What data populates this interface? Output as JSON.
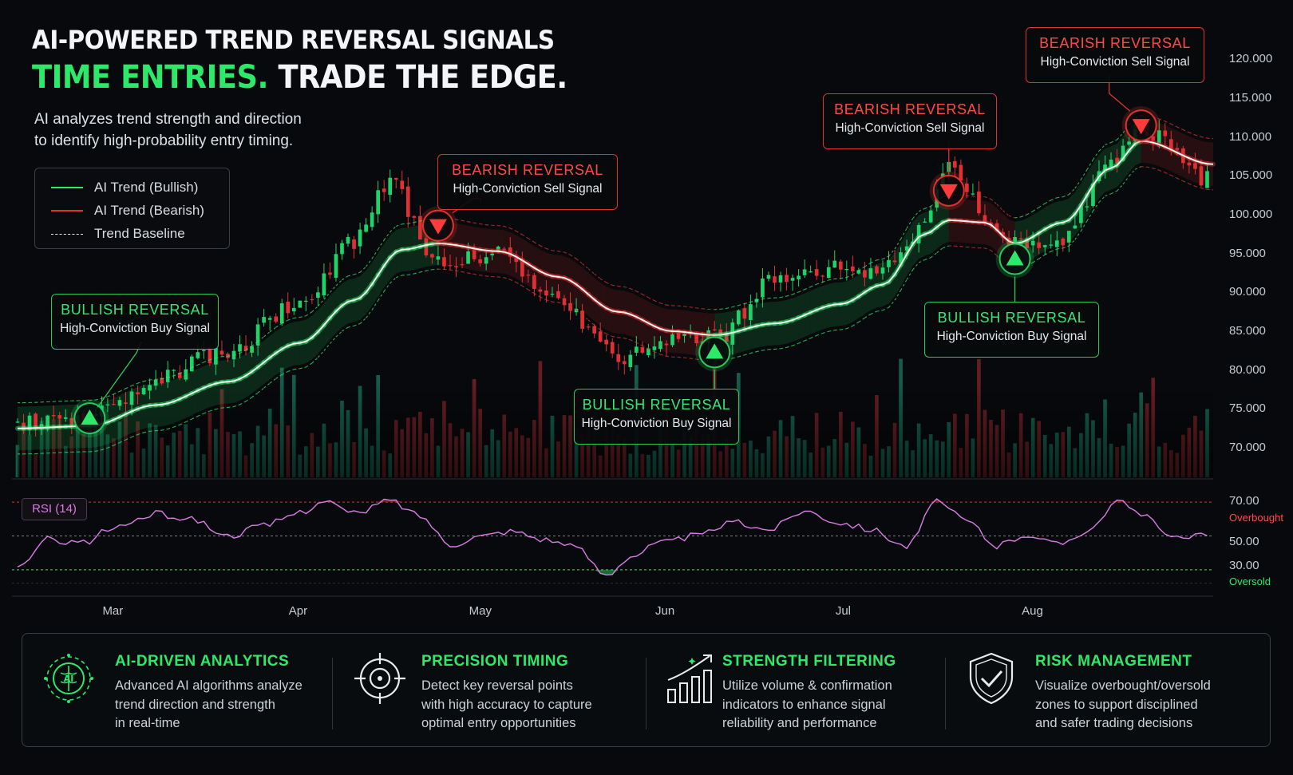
{
  "header": {
    "title": "AI-POWERED TREND REVERSAL SIGNALS",
    "tagline_green": "TIME ENTRIES.",
    "tagline_white": "TRADE THE EDGE.",
    "subtitle_line1": "AI analyzes trend strength and direction",
    "subtitle_line2": "to identify high-probability entry timing."
  },
  "colors": {
    "bullish": "#2ee86a",
    "bearish": "#e0322f",
    "baseline": "#f2f2f2",
    "rsi": "#d97be4",
    "background": "#07090c"
  },
  "legend": {
    "placement": "top-left",
    "items": [
      {
        "label": "AI Trend (Bullish)",
        "style": "solid",
        "color": "#2ee86a"
      },
      {
        "label": "AI Trend (Bearish)",
        "style": "solid",
        "color": "#e0322f"
      },
      {
        "label": "Trend Baseline",
        "style": "dashed",
        "color": "#e6e6e6"
      }
    ]
  },
  "signals": [
    {
      "type": "bullish",
      "title": "BULLISH REVERSAL",
      "subtitle": "High-Conviction Buy Signal",
      "date": "2024-02-26",
      "price": 73.8
    },
    {
      "type": "bearish",
      "title": "BEARISH REVERSAL",
      "subtitle": "High-Conviction Sell Signal",
      "date": "2024-04-24",
      "price": 98.6
    },
    {
      "type": "bullish",
      "title": "BULLISH REVERSAL",
      "subtitle": "High-Conviction Buy Signal",
      "date": "2024-06-09",
      "price": 82.3
    },
    {
      "type": "bearish",
      "title": "BEARISH REVERSAL",
      "subtitle": "High-Conviction Sell Signal",
      "date": "2024-07-18",
      "price": 103.1
    },
    {
      "type": "bullish",
      "title": "BULLISH REVERSAL",
      "subtitle": "High-Conviction Buy Signal",
      "date": "2024-07-29",
      "price": 94.3
    },
    {
      "type": "bearish",
      "title": "BEARISH REVERSAL",
      "subtitle": "High-Conviction Sell Signal",
      "date": "2024-08-19",
      "price": 111.5
    }
  ],
  "chart_data": [
    {
      "type": "candlestick",
      "title": "",
      "y_axis_position": "right",
      "ylim": [
        66.0,
        122.5
      ],
      "yticks": [
        "120.000",
        "115.000",
        "110.000",
        "105.000",
        "100.000",
        "95.000",
        "90.000",
        "85.000",
        "80.000",
        "75.000",
        "70.000"
      ],
      "x_tick_labels": [
        "Mar",
        "Apr",
        "May",
        "Jun",
        "Jul",
        "Aug"
      ],
      "x_tick_dates": [
        "2024-03-01",
        "2024-04-01",
        "2024-05-01",
        "2024-06-01",
        "2024-07-01",
        "2024-08-01"
      ],
      "x_range": [
        "2024-02-14",
        "2024-08-31"
      ],
      "price_path": {
        "dates": [
          "2024-02-14",
          "2024-02-26",
          "2024-03-08",
          "2024-03-20",
          "2024-04-01",
          "2024-04-10",
          "2024-04-16",
          "2024-04-24",
          "2024-05-04",
          "2024-05-14",
          "2024-05-24",
          "2024-06-02",
          "2024-06-09",
          "2024-06-19",
          "2024-06-30",
          "2024-07-07",
          "2024-07-12",
          "2024-07-18",
          "2024-07-24",
          "2024-07-29",
          "2024-08-06",
          "2024-08-14",
          "2024-08-19",
          "2024-08-30"
        ],
        "close": [
          73.0,
          73.8,
          79.0,
          82.5,
          89.0,
          96.5,
          104.0,
          94.0,
          95.0,
          89.0,
          81.5,
          84.5,
          84.0,
          91.5,
          93.5,
          92.5,
          97.0,
          106.0,
          100.0,
          96.0,
          97.0,
          107.0,
          111.0,
          104.5
        ]
      },
      "ai_trend": {
        "dates": [
          "2024-02-14",
          "2024-02-26",
          "2024-03-08",
          "2024-03-20",
          "2024-04-01",
          "2024-04-10",
          "2024-04-18",
          "2024-04-24",
          "2024-05-04",
          "2024-05-14",
          "2024-05-24",
          "2024-06-02",
          "2024-06-09",
          "2024-06-19",
          "2024-06-30",
          "2024-07-07",
          "2024-07-14",
          "2024-07-18",
          "2024-07-24",
          "2024-07-29",
          "2024-08-06",
          "2024-08-14",
          "2024-08-19",
          "2024-08-31"
        ],
        "values": [
          72.5,
          72.8,
          75.5,
          78.5,
          83.5,
          89.0,
          95.5,
          96.3,
          95.3,
          92.0,
          87.5,
          85.0,
          84.5,
          86.0,
          88.5,
          91.0,
          97.5,
          99.3,
          99.0,
          96.3,
          99.0,
          106.0,
          109.5,
          106.5
        ]
      },
      "volume_panel": "bars colored by candle direction along bottom of price panel"
    },
    {
      "type": "line",
      "title": "RSI (14)",
      "ylim": [
        20,
        80
      ],
      "yticks": [
        "70.00",
        "50.00",
        "30.00"
      ],
      "levels": [
        {
          "value": 70,
          "label": "Overbought",
          "color": "#e0322f"
        },
        {
          "value": 30,
          "label": "Oversold",
          "color": "#2ee86a"
        }
      ],
      "x": [
        "2024-02-14",
        "2024-02-19",
        "2024-02-25",
        "2024-03-01",
        "2024-03-08",
        "2024-03-14",
        "2024-03-20",
        "2024-03-26",
        "2024-04-01",
        "2024-04-05",
        "2024-04-10",
        "2024-04-16",
        "2024-04-21",
        "2024-04-26",
        "2024-05-01",
        "2024-05-06",
        "2024-05-12",
        "2024-05-17",
        "2024-05-22",
        "2024-05-26",
        "2024-05-31",
        "2024-06-06",
        "2024-06-12",
        "2024-06-18",
        "2024-06-24",
        "2024-06-30",
        "2024-07-05",
        "2024-07-11",
        "2024-07-16",
        "2024-07-21",
        "2024-07-26",
        "2024-07-31",
        "2024-08-05",
        "2024-08-10",
        "2024-08-15",
        "2024-08-20",
        "2024-08-25",
        "2024-08-30"
      ],
      "y": [
        31,
        48,
        46,
        55,
        63,
        60,
        50,
        56,
        64,
        71,
        63,
        71,
        62,
        45,
        50,
        53,
        48,
        43,
        27,
        38,
        46,
        50,
        58,
        54,
        65,
        58,
        54,
        44,
        70,
        59,
        44,
        51,
        45,
        53,
        70,
        61,
        48,
        51
      ]
    }
  ],
  "features": [
    {
      "icon": "ai-brain-icon",
      "title": "AI-DRIVEN ANALYTICS",
      "desc_lines": [
        "Advanced AI algorithms analyze",
        "trend direction and strength",
        "in real-time"
      ]
    },
    {
      "icon": "crosshair-icon",
      "title": "PRECISION TIMING",
      "desc_lines": [
        "Detect key reversal points",
        "with high accuracy to capture",
        "optimal entry opportunities"
      ]
    },
    {
      "icon": "bar-growth-icon",
      "title": "STRENGTH FILTERING",
      "desc_lines": [
        "Utilize volume & confirmation",
        "indicators to enhance signal",
        "reliability and performance"
      ]
    },
    {
      "icon": "shield-check-icon",
      "title": "RISK MANAGEMENT",
      "desc_lines": [
        "Visualize overbought/oversold",
        "zones to support disciplined",
        "and safer trading decisions"
      ]
    }
  ]
}
